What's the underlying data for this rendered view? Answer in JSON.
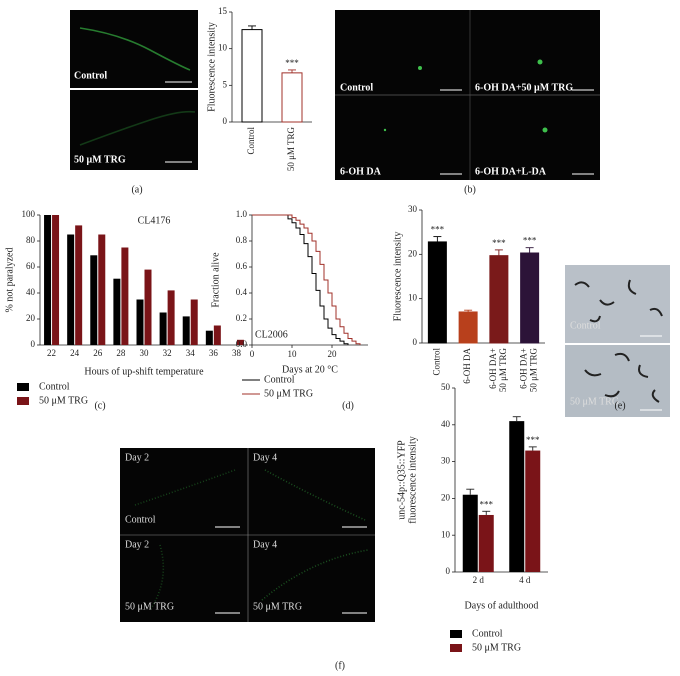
{
  "panel_labels": [
    "(a)",
    "(b)",
    "(c)",
    "(d)",
    "(e)",
    "(f)"
  ],
  "images": {
    "a": [
      "Control",
      "50 μM TRG"
    ],
    "b": [
      "Control",
      "6-OH DA+50 μM TRG",
      "6-OH DA",
      "6-OH DA+L-DA"
    ],
    "e": [
      "Control",
      "50 μM TRG"
    ],
    "f": [
      [
        "Day 2",
        "Control"
      ],
      [
        "Day 4"
      ],
      [
        "Day 2",
        "50 μM TRG"
      ],
      [
        "Day 4",
        "50 μM TRG"
      ]
    ]
  },
  "chart_data": [
    {
      "type": "bar",
      "ylabel": "Fluorescence intensity",
      "categories": [
        [
          "Control"
        ],
        [
          "50 μM TRG"
        ]
      ],
      "values": [
        12.6,
        6.7
      ],
      "errors": [
        0.5,
        0.4
      ],
      "significance": [
        null,
        "***"
      ],
      "colors": [
        "#000000",
        "#a0302a"
      ],
      "filled": false,
      "ylim": [
        0,
        15
      ],
      "yticks": [
        0,
        5,
        10,
        15
      ]
    },
    {
      "type": "bar",
      "ylabel": "Fluorescence intensity",
      "categories": [
        [
          "Control"
        ],
        [
          "6-OH DA"
        ],
        [
          "6-OH DA+",
          "50 μM TRG"
        ],
        [
          "6-OH DA+",
          "50 μM TRG"
        ]
      ],
      "values": [
        22.8,
        7.0,
        19.7,
        20.3
      ],
      "errors": [
        1.2,
        0.4,
        1.3,
        1.2
      ],
      "significance": [
        "***",
        null,
        "***",
        "***"
      ],
      "colors": [
        "#000000",
        "#b8401c",
        "#7a1a1a",
        "#2c1338"
      ],
      "filled": true,
      "ylim": [
        0,
        30
      ],
      "yticks": [
        0,
        10,
        20,
        30
      ]
    },
    {
      "type": "bar",
      "title": "CL4176",
      "xlabel": "Hours of up-shift temperature",
      "ylabel": "% not paralyzed",
      "categories": [
        [
          "22"
        ],
        [
          "24"
        ],
        [
          "26"
        ],
        [
          "28"
        ],
        [
          "30"
        ],
        [
          "32"
        ],
        [
          "34"
        ],
        [
          "36"
        ],
        [
          "38"
        ]
      ],
      "series": [
        {
          "name": "Control",
          "color": "#000000",
          "values": [
            100,
            85,
            69,
            51,
            35,
            25,
            22,
            11,
            0
          ]
        },
        {
          "name": "50 μM TRG",
          "color": "#7a1418",
          "values": [
            100,
            92,
            85,
            75,
            58,
            42,
            35,
            15,
            4
          ]
        }
      ],
      "ylim": [
        0,
        100
      ],
      "yticks": [
        0,
        20,
        40,
        60,
        80,
        100
      ]
    },
    {
      "type": "line",
      "step": true,
      "annotation": "CL2006",
      "xlabel": "Days at 20 °C",
      "ylabel": "Fraction alive",
      "series": [
        {
          "name": "Control",
          "color": "#000000",
          "x": [
            0,
            8,
            9,
            10,
            11,
            12,
            13,
            14,
            15,
            16,
            17,
            18,
            19,
            20,
            21,
            22,
            23,
            24
          ],
          "values": [
            1,
            1,
            0.97,
            0.94,
            0.9,
            0.85,
            0.78,
            0.68,
            0.55,
            0.42,
            0.3,
            0.2,
            0.13,
            0.08,
            0.05,
            0.03,
            0.01,
            0
          ]
        },
        {
          "name": "50 μM TRG",
          "color": "#a0302a",
          "x": [
            0,
            9,
            10,
            11,
            12,
            13,
            14,
            15,
            16,
            17,
            18,
            19,
            20,
            21,
            22,
            23,
            24,
            25,
            26,
            27
          ],
          "values": [
            1,
            1,
            0.98,
            0.96,
            0.93,
            0.9,
            0.86,
            0.8,
            0.72,
            0.62,
            0.5,
            0.4,
            0.3,
            0.2,
            0.14,
            0.09,
            0.05,
            0.03,
            0.01,
            0
          ]
        }
      ],
      "xlim": [
        0,
        29
      ],
      "xticks": [
        0,
        10,
        20
      ],
      "ylim": [
        0,
        1
      ],
      "yticks": [
        {
          "value": 0,
          "label": "0.0"
        },
        {
          "value": 0.2,
          "label": "0.2"
        },
        {
          "value": 0.4,
          "label": "0.4"
        },
        {
          "value": 0.6,
          "label": "0.6"
        },
        {
          "value": 0.8,
          "label": "0.8"
        },
        {
          "value": 1,
          "label": "1.0"
        }
      ]
    },
    {
      "type": "bar",
      "xlabel": "Days of adulthood",
      "ylabel": [
        "unc-54p::Q35::YFP",
        "fluorescence intensity"
      ],
      "categories": [
        [
          "2 d"
        ],
        [
          "4 d"
        ]
      ],
      "series": [
        {
          "name": "Control",
          "color": "#000000",
          "values": [
            21,
            41
          ],
          "errors": [
            1.5,
            1.2
          ]
        },
        {
          "name": "50 μM TRG",
          "color": "#7a1418",
          "values": [
            15.5,
            33
          ],
          "errors": [
            1,
            1
          ],
          "significance": [
            "***",
            "***"
          ]
        }
      ],
      "ylim": [
        0,
        50
      ],
      "yticks": [
        0,
        10,
        20,
        30,
        40,
        50
      ]
    }
  ]
}
